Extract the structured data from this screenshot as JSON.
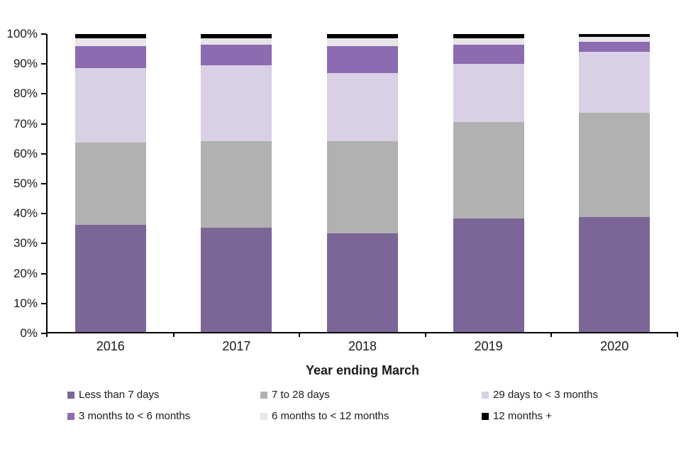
{
  "chart_data": {
    "type": "bar",
    "variant": "stacked-percent",
    "title": "",
    "xlabel": "Year ending March",
    "ylabel": "",
    "ylim": [
      0,
      100
    ],
    "ytick_step": 10,
    "ytick_suffix": "%",
    "grid": false,
    "legend_position": "bottom",
    "categories": [
      "2016",
      "2017",
      "2018",
      "2019",
      "2020"
    ],
    "series": [
      {
        "name": "Less than 7 days",
        "color": "#7c6597",
        "values": [
          36,
          35,
          33,
          38,
          38.5
        ]
      },
      {
        "name": "7 to 28 days",
        "color": "#b2b1b1",
        "values": [
          27.5,
          29,
          31,
          32.5,
          35
        ]
      },
      {
        "name": "29 days to < 3 months",
        "color": "#d9d0e6",
        "values": [
          25,
          25.5,
          23,
          19.5,
          20.5
        ]
      },
      {
        "name": "3 months to < 6 months",
        "color": "#8c6bb0",
        "values": [
          7.5,
          7,
          9,
          6.5,
          3.5
        ]
      },
      {
        "name": "6 months to < 12 months",
        "color": "#e7e4ea",
        "values": [
          2.5,
          2,
          2.5,
          2,
          1.5
        ]
      },
      {
        "name": "12 months +",
        "color": "#000000",
        "values": [
          1.5,
          1.5,
          1.5,
          1.5,
          1
        ]
      }
    ]
  }
}
